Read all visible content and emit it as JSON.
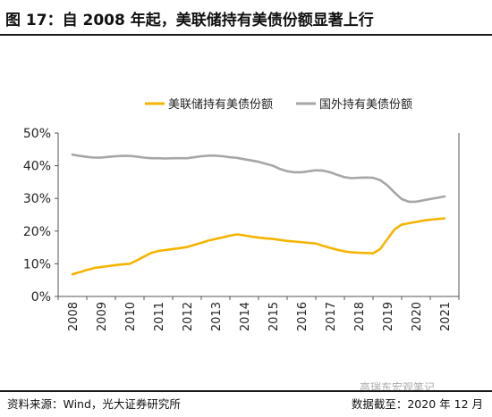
{
  "title": "图 17：自 2008 年起，美联储持有美债份额显著上行",
  "source": "资料来源：Wind，光大证券研究所",
  "as_of": "数据截至：2020 年 12 月",
  "watermark": "高瑞东宏观笔记",
  "chart_data": {
    "type": "line",
    "x": [
      "2008",
      "2009",
      "2010",
      "2011",
      "2012",
      "2013",
      "2014",
      "2015",
      "2016",
      "2017",
      "2018",
      "2019",
      "2020",
      "2021"
    ],
    "x_values": [
      2008.0,
      2008.25,
      2008.5,
      2008.75,
      2009.0,
      2009.25,
      2009.5,
      2009.75,
      2010.0,
      2010.25,
      2010.5,
      2010.75,
      2011.0,
      2011.25,
      2011.5,
      2011.75,
      2012.0,
      2012.25,
      2012.5,
      2012.75,
      2013.0,
      2013.25,
      2013.5,
      2013.75,
      2014.0,
      2014.25,
      2014.5,
      2014.75,
      2015.0,
      2015.25,
      2015.5,
      2015.75,
      2016.0,
      2016.25,
      2016.5,
      2016.75,
      2017.0,
      2017.25,
      2017.5,
      2017.75,
      2018.0,
      2018.25,
      2018.5,
      2018.75,
      2019.0,
      2019.25,
      2019.5,
      2019.75,
      2020.0,
      2020.25,
      2020.5,
      2020.75,
      2021.0
    ],
    "ylim": [
      0,
      50
    ],
    "yticks": [
      0,
      10,
      20,
      30,
      40,
      50
    ],
    "ytick_labels": [
      "0%",
      "10%",
      "20%",
      "30%",
      "40%",
      "50%"
    ],
    "y_unit": "%",
    "legend_position": "top",
    "grid": false,
    "series": [
      {
        "name": "美联储持有美债份额",
        "color": "#F5B400",
        "values": [
          6.8,
          7.4,
          8.1,
          8.7,
          9.0,
          9.3,
          9.6,
          9.8,
          10.0,
          11.0,
          12.2,
          13.3,
          13.9,
          14.2,
          14.5,
          14.8,
          15.1,
          15.8,
          16.4,
          17.1,
          17.6,
          18.1,
          18.6,
          19.0,
          18.7,
          18.3,
          18.0,
          17.8,
          17.6,
          17.3,
          17.0,
          16.8,
          16.6,
          16.4,
          16.2,
          15.5,
          14.9,
          14.3,
          13.8,
          13.5,
          13.4,
          13.3,
          13.2,
          14.5,
          17.5,
          20.5,
          22.0,
          22.4,
          22.8,
          23.2,
          23.5,
          23.7,
          23.9
        ]
      },
      {
        "name": "国外持有美债份额",
        "color": "#A6A6A6",
        "values": [
          43.4,
          43.0,
          42.7,
          42.5,
          42.5,
          42.7,
          42.9,
          43.0,
          43.0,
          42.8,
          42.5,
          42.3,
          42.3,
          42.2,
          42.3,
          42.3,
          42.3,
          42.6,
          42.9,
          43.1,
          43.1,
          42.9,
          42.6,
          42.4,
          42.0,
          41.6,
          41.2,
          40.6,
          40.0,
          39.0,
          38.3,
          38.0,
          38.0,
          38.3,
          38.6,
          38.5,
          38.0,
          37.2,
          36.5,
          36.2,
          36.3,
          36.4,
          36.3,
          35.6,
          34.0,
          31.8,
          29.8,
          29.0,
          29.0,
          29.4,
          29.8,
          30.2,
          30.6
        ]
      }
    ]
  }
}
